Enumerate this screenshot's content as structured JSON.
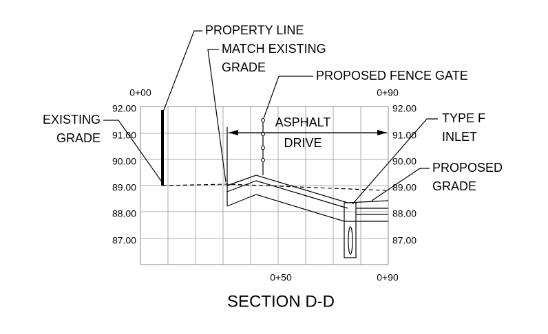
{
  "title": "SECTION D-D",
  "stations": {
    "top_left": "0+00",
    "top_right": "0+90",
    "bottom_mid": "0+50",
    "bottom_right": "0+90"
  },
  "elevations_left": [
    "92.00",
    "91.00",
    "90.00",
    "89.00",
    "88.00",
    "87.00"
  ],
  "elevations_right": [
    "92.00",
    "91.00",
    "90.00",
    "89.00",
    "88.00",
    "87.00"
  ],
  "callouts": {
    "property_line": [
      "PROPERTY LINE"
    ],
    "match_existing": [
      "MATCH EXISTING",
      "GRADE"
    ],
    "fence_gate": [
      "PROPOSED FENCE GATE"
    ],
    "existing_grade": [
      "EXISTING",
      "GRADE"
    ],
    "asphalt_drive": [
      "ASPHALT",
      "DRIVE"
    ],
    "inlet": [
      "TYPE F",
      "INLET"
    ],
    "proposed_grade": [
      "PROPOSED",
      "GRADE"
    ]
  }
}
